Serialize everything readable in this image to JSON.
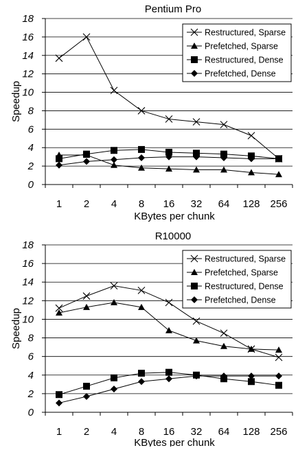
{
  "chart_data": [
    {
      "type": "line",
      "title": "Pentium Pro",
      "xlabel": "KBytes per chunk",
      "ylabel": "Speedup",
      "categories": [
        "1",
        "2",
        "4",
        "8",
        "16",
        "32",
        "64",
        "128",
        "256"
      ],
      "ylim": [
        0,
        18
      ],
      "yticks": [
        "0",
        "2",
        "4",
        "6",
        "8",
        "10",
        "12",
        "14",
        "16",
        "18"
      ],
      "grid": "horizontal",
      "legend": "top-right",
      "series": [
        {
          "name": "Restructured, Sparse",
          "marker": "x",
          "values": [
            13.7,
            16.0,
            10.2,
            8.0,
            7.1,
            6.8,
            6.5,
            5.3,
            2.8
          ]
        },
        {
          "name": "Prefetched, Sparse",
          "marker": "triangle",
          "values": [
            3.2,
            3.2,
            2.1,
            1.8,
            1.7,
            1.6,
            1.6,
            1.3,
            1.1
          ]
        },
        {
          "name": "Restructured, Dense",
          "marker": "square",
          "values": [
            2.8,
            3.3,
            3.7,
            3.8,
            3.5,
            3.4,
            3.3,
            3.1,
            2.8
          ]
        },
        {
          "name": "Prefetched, Dense",
          "marker": "diamond",
          "values": [
            2.1,
            2.5,
            2.7,
            2.9,
            3.0,
            3.0,
            2.9,
            2.8,
            2.8
          ]
        }
      ]
    },
    {
      "type": "line",
      "title": "R10000",
      "xlabel": "KBytes per chunk",
      "ylabel": "Speedup",
      "categories": [
        "1",
        "2",
        "4",
        "8",
        "16",
        "32",
        "64",
        "128",
        "256"
      ],
      "ylim": [
        0,
        18
      ],
      "yticks": [
        "0",
        "2",
        "4",
        "6",
        "8",
        "10",
        "12",
        "14",
        "16",
        "18"
      ],
      "grid": "horizontal",
      "legend": "top-right",
      "series": [
        {
          "name": "Restructured, Sparse",
          "marker": "x",
          "values": [
            11.2,
            12.5,
            13.6,
            13.1,
            11.8,
            9.8,
            8.5,
            6.8,
            5.9
          ]
        },
        {
          "name": "Prefetched, Sparse",
          "marker": "triangle",
          "values": [
            10.7,
            11.3,
            11.8,
            11.3,
            8.8,
            7.7,
            7.1,
            6.8,
            6.7
          ]
        },
        {
          "name": "Restructured, Dense",
          "marker": "square",
          "values": [
            1.9,
            2.8,
            3.7,
            4.2,
            4.3,
            4.0,
            3.6,
            3.3,
            2.9
          ]
        },
        {
          "name": "Prefetched, Dense",
          "marker": "diamond",
          "values": [
            1.0,
            1.7,
            2.5,
            3.3,
            3.6,
            3.9,
            3.9,
            3.9,
            3.9
          ]
        }
      ]
    }
  ]
}
